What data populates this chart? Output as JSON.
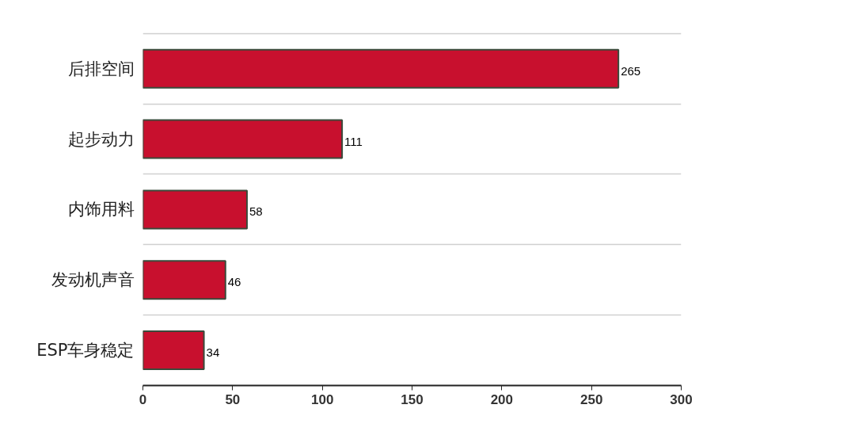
{
  "chart_data": {
    "type": "bar",
    "orientation": "horizontal",
    "categories": [
      "后排空间",
      "起步动力",
      "内饰用料",
      "发动机声音",
      "ESP车身稳定"
    ],
    "values": [
      265,
      111,
      58,
      46,
      34
    ],
    "color": "#c8102e",
    "xlim": [
      0,
      300
    ],
    "xticks": [
      0,
      50,
      100,
      150,
      200,
      250,
      300
    ],
    "grid": "y",
    "data_labels": true
  }
}
